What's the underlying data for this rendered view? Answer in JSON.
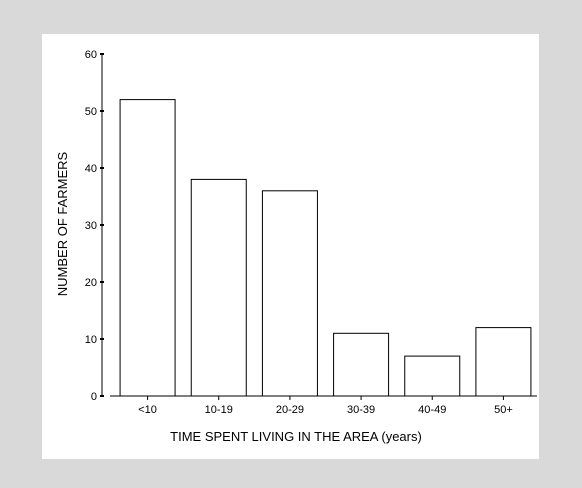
{
  "chart_data": {
    "type": "bar",
    "title": "",
    "xlabel": "TIME SPENT LIVING IN THE AREA (years)",
    "ylabel": "NUMBER OF FARMERS",
    "categories": [
      "<10",
      "10-19",
      "20-29",
      "30-39",
      "40-49",
      "50+"
    ],
    "values": [
      52,
      38,
      36,
      11,
      7,
      12
    ],
    "ylim": [
      0,
      60
    ],
    "yticks": [
      0,
      10,
      20,
      30,
      40,
      50,
      60
    ],
    "grid": false,
    "legend": "none",
    "colors": {
      "background": "#d9d9d9",
      "panel": "#ffffff",
      "bar_fill": "#ffffff",
      "bar_stroke": "#000000",
      "axis": "#000000"
    }
  }
}
